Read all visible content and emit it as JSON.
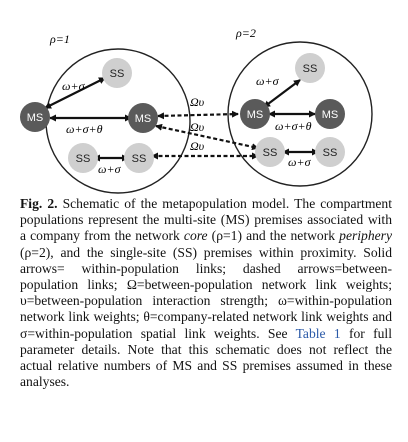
{
  "figure": {
    "left_label": "ρ=1",
    "right_label": "ρ=2",
    "ms_label": "MS",
    "ss_label": "SS",
    "edge_omega_sigma": "ω+σ",
    "edge_omega_sigma_theta": "ω+σ+θ",
    "edge_omega": "ω+σ",
    "between_upsilon": "Ωυ"
  },
  "caption": {
    "label": "Fig. 2.",
    "t1": " Schematic of the metapopulation model. The compartment populations represent the multi-site (MS) premises associated with a company from the network ",
    "core": "core",
    "t2": " (ρ=1) and the network ",
    "periphery": "periphery",
    "t3": " (ρ=2), and the single-site (SS) premises within proximity. Solid arrows= within-population links; dashed arrows=between-population links; Ω=between-population network link weights; υ=between-population interaction strength; ω=within-population network link weights; θ=company-related network link weights and σ=within-population spatial link weights. See ",
    "table_ref": "Table 1",
    "t4": " for full parameter details. Note that this schematic does not reflect the actual relative numbers of MS and SS premises assumed in these analyses."
  }
}
